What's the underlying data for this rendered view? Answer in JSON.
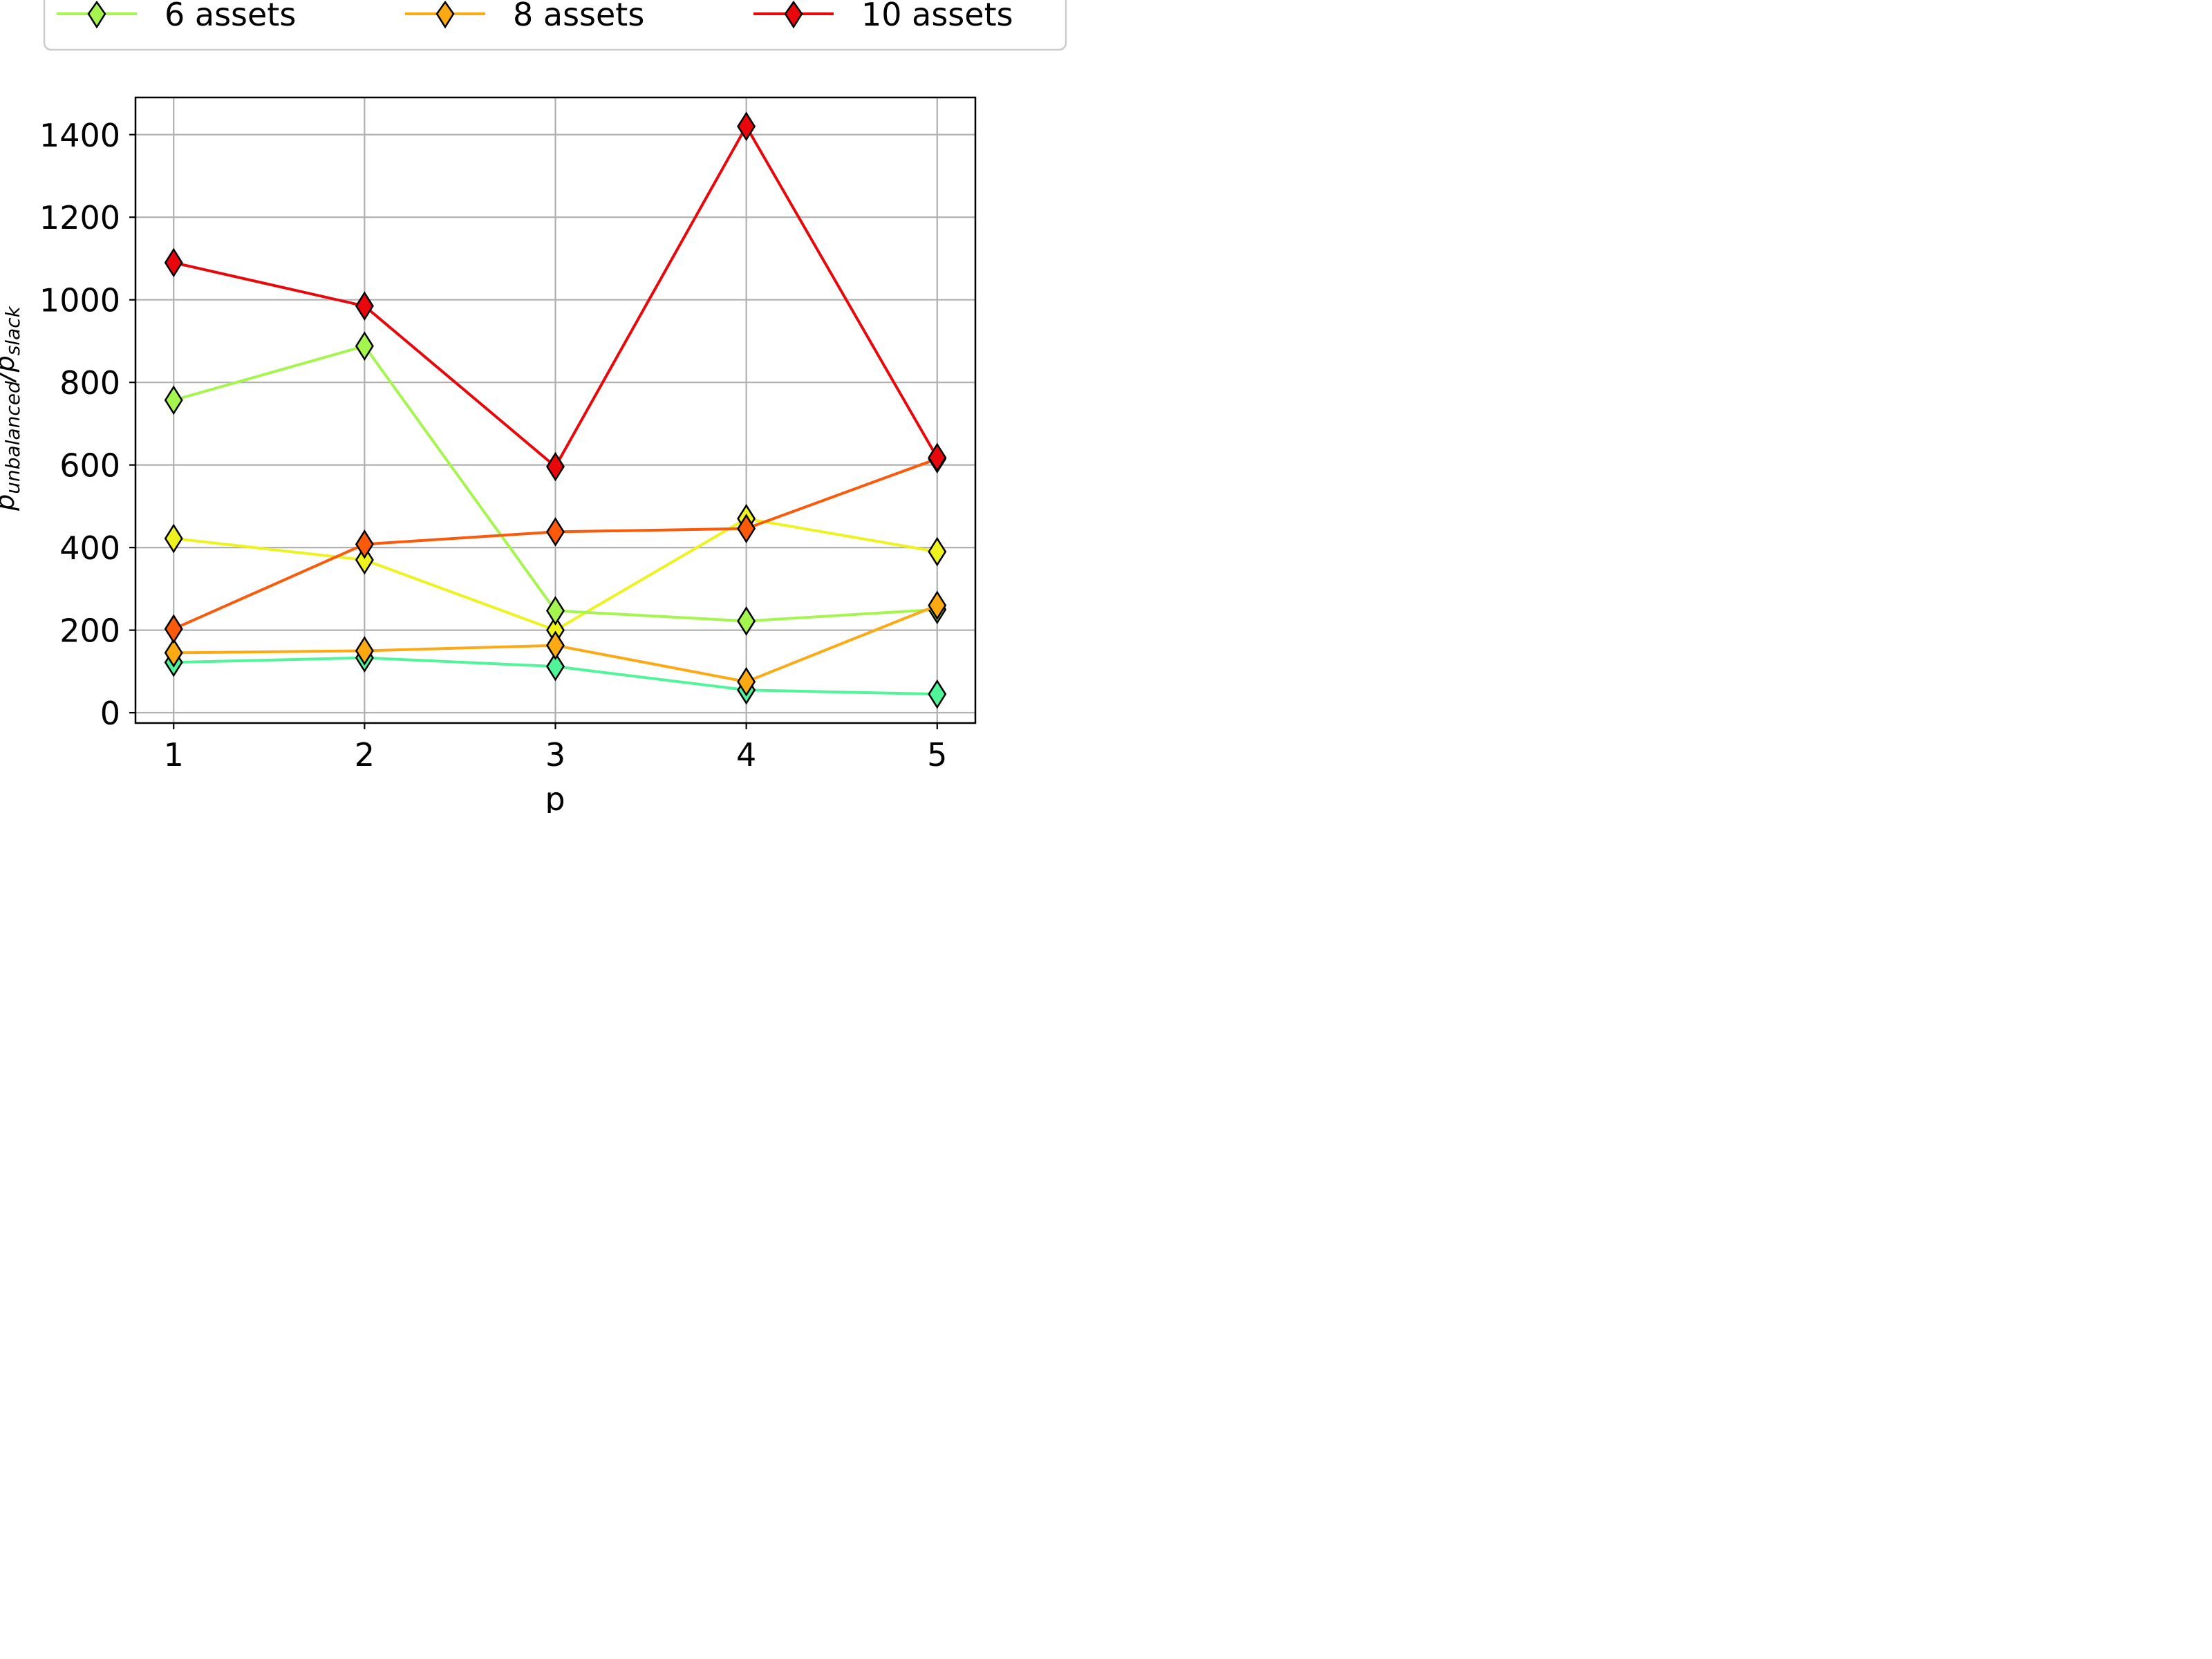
{
  "chart_data": {
    "type": "line",
    "xlabel": "p",
    "ylabel": "p_unbalanced/p_slack",
    "ylabel_main": "p",
    "ylabel_main_sub": "unbalanced",
    "ylabel_sep": "/p",
    "ylabel_sep_sub": "slack",
    "x": [
      1,
      2,
      3,
      4,
      5
    ],
    "xlim": [
      0.8,
      5.2
    ],
    "ylim": [
      -25,
      1490
    ],
    "xticks": [
      "1",
      "2",
      "3",
      "4",
      "5"
    ],
    "yticks": [
      "0",
      "200",
      "400",
      "600",
      "800",
      "1000",
      "1200",
      "1400"
    ],
    "grid": true,
    "legend": {
      "position": "top",
      "entries": [
        "6 assets",
        "8 assets",
        "10 assets"
      ]
    },
    "series": [
      {
        "name": "",
        "color": "#50f59a",
        "values": [
          122,
          133,
          112,
          55,
          45
        ]
      },
      {
        "name": "",
        "color": "#eef21e",
        "values": [
          422,
          370,
          200,
          470,
          390
        ]
      },
      {
        "name": "6 assets",
        "color": "#a5f54f",
        "values": [
          757,
          888,
          247,
          222,
          250
        ]
      },
      {
        "name": "8 assets",
        "color": "#fca914",
        "values": [
          145,
          150,
          163,
          75,
          260
        ]
      },
      {
        "name": "",
        "color": "#fa5a0a",
        "values": [
          203,
          408,
          438,
          446,
          615
        ]
      },
      {
        "name": "10 assets",
        "color": "#e8070b",
        "values": [
          1090,
          985,
          596,
          1420,
          618
        ]
      }
    ]
  }
}
